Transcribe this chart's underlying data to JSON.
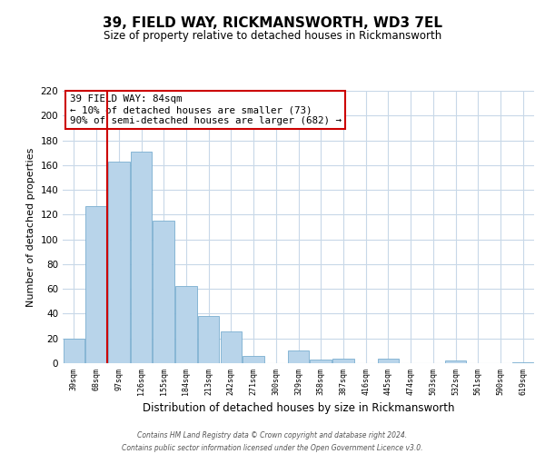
{
  "title": "39, FIELD WAY, RICKMANSWORTH, WD3 7EL",
  "subtitle": "Size of property relative to detached houses in Rickmansworth",
  "xlabel": "Distribution of detached houses by size in Rickmansworth",
  "ylabel": "Number of detached properties",
  "bar_labels": [
    "39sqm",
    "68sqm",
    "97sqm",
    "126sqm",
    "155sqm",
    "184sqm",
    "213sqm",
    "242sqm",
    "271sqm",
    "300sqm",
    "329sqm",
    "358sqm",
    "387sqm",
    "416sqm",
    "445sqm",
    "474sqm",
    "503sqm",
    "532sqm",
    "561sqm",
    "590sqm",
    "619sqm"
  ],
  "bar_values": [
    20,
    127,
    163,
    171,
    115,
    62,
    38,
    26,
    6,
    0,
    10,
    3,
    4,
    0,
    4,
    0,
    0,
    2,
    0,
    0,
    1
  ],
  "bar_color": "#b8d4ea",
  "bar_edge_color": "#7aaed0",
  "ylim": [
    0,
    220
  ],
  "yticks": [
    0,
    20,
    40,
    60,
    80,
    100,
    120,
    140,
    160,
    180,
    200,
    220
  ],
  "annotation_line1": "39 FIELD WAY: 84sqm",
  "annotation_line2": "← 10% of detached houses are smaller (73)",
  "annotation_line3": "90% of semi-detached houses are larger (682) →",
  "footer_line1": "Contains HM Land Registry data © Crown copyright and database right 2024.",
  "footer_line2": "Contains public sector information licensed under the Open Government Licence v3.0.",
  "red_line_color": "#cc0000",
  "background_color": "#ffffff",
  "grid_color": "#c8d8e8",
  "red_line_xindex": 1
}
